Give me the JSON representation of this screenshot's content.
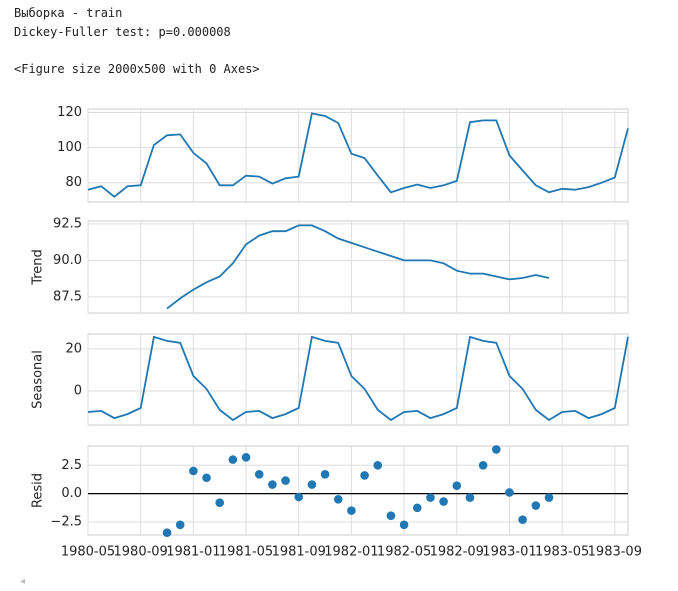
{
  "output_lines": [
    "Выборка - train",
    "Dickey-Fuller test: p=0.000008",
    "<Figure size 2000x500 with 0 Axes>"
  ],
  "chart_data": [
    {
      "type": "line",
      "color": "#1f77b4",
      "grid": true,
      "x": [
        "1980-05",
        "1980-06",
        "1980-07",
        "1980-08",
        "1980-09",
        "1980-10",
        "1980-11",
        "1980-12",
        "1981-01",
        "1981-02",
        "1981-03",
        "1981-04",
        "1981-05",
        "1981-06",
        "1981-07",
        "1981-08",
        "1981-09",
        "1981-10",
        "1981-11",
        "1981-12",
        "1982-01",
        "1982-02",
        "1982-03",
        "1982-04",
        "1982-05",
        "1982-06",
        "1982-07",
        "1982-08",
        "1982-09",
        "1982-10",
        "1982-11",
        "1982-12",
        "1983-01",
        "1983-02",
        "1983-03",
        "1983-04",
        "1983-05",
        "1983-06",
        "1983-07",
        "1983-08",
        "1983-09",
        "1983-10"
      ],
      "values": [
        76,
        78,
        72,
        78,
        78.5,
        101.5,
        107,
        107.5,
        97,
        91,
        78.5,
        78.5,
        84,
        83.5,
        79.5,
        82.5,
        83.5,
        119.5,
        118,
        114,
        96.5,
        94,
        84,
        74.5,
        77,
        79,
        77,
        78.5,
        81,
        114.5,
        115.5,
        115.5,
        95.5,
        87,
        78.5,
        74.5,
        76.5,
        76,
        77.5,
        80,
        83,
        111
      ],
      "xlim": [
        "1980-05",
        "1983-10"
      ],
      "ylim": [
        69,
        122
      ],
      "yticks": [
        80,
        100,
        120
      ]
    },
    {
      "type": "line",
      "color": "#1f77b4",
      "grid": true,
      "ylabel": "Trend",
      "x": [
        "1980-05",
        "1980-06",
        "1980-07",
        "1980-08",
        "1980-09",
        "1980-10",
        "1980-11",
        "1980-12",
        "1981-01",
        "1981-02",
        "1981-03",
        "1981-04",
        "1981-05",
        "1981-06",
        "1981-07",
        "1981-08",
        "1981-09",
        "1981-10",
        "1981-11",
        "1981-12",
        "1982-01",
        "1982-02",
        "1982-03",
        "1982-04",
        "1982-05",
        "1982-06",
        "1982-07",
        "1982-08",
        "1982-09",
        "1982-10",
        "1982-11",
        "1982-12",
        "1983-01",
        "1983-02",
        "1983-03",
        "1983-04",
        "1983-05",
        "1983-06",
        "1983-07",
        "1983-08",
        "1983-09",
        "1983-10"
      ],
      "values": [
        null,
        null,
        null,
        null,
        null,
        null,
        86.7,
        87.4,
        88.0,
        88.5,
        88.9,
        89.8,
        91.1,
        91.7,
        92.0,
        92.0,
        92.4,
        92.4,
        92.0,
        91.5,
        91.2,
        90.9,
        90.6,
        90.3,
        90.0,
        90.0,
        90.0,
        89.8,
        89.3,
        89.1,
        89.1,
        88.9,
        88.7,
        88.8,
        89.0,
        88.8,
        null,
        null,
        null,
        null,
        null,
        null
      ],
      "xlim": [
        "1980-05",
        "1983-10"
      ],
      "ylim": [
        86.4,
        92.7
      ],
      "yticks": [
        87.5,
        {
          "value": 90,
          "label": "90.0"
        },
        92.5
      ]
    },
    {
      "type": "line",
      "color": "#1f77b4",
      "grid": true,
      "ylabel": "Seasonal",
      "x": [
        "1980-05",
        "1980-06",
        "1980-07",
        "1980-08",
        "1980-09",
        "1980-10",
        "1980-11",
        "1980-12",
        "1981-01",
        "1981-02",
        "1981-03",
        "1981-04",
        "1981-05",
        "1981-06",
        "1981-07",
        "1981-08",
        "1981-09",
        "1981-10",
        "1981-11",
        "1981-12",
        "1982-01",
        "1982-02",
        "1982-03",
        "1982-04",
        "1982-05",
        "1982-06",
        "1982-07",
        "1982-08",
        "1982-09",
        "1982-10",
        "1982-11",
        "1982-12",
        "1983-01",
        "1983-02",
        "1983-03",
        "1983-04",
        "1983-05",
        "1983-06",
        "1983-07",
        "1983-08",
        "1983-09",
        "1983-10"
      ],
      "values": [
        -10,
        -9.5,
        -12.9,
        -11,
        -8.1,
        25.7,
        23.8,
        22.9,
        7.1,
        1,
        -9,
        -13.8,
        -10,
        -9.5,
        -12.9,
        -11,
        -8.1,
        25.7,
        23.8,
        22.9,
        7.1,
        1,
        -9,
        -13.8,
        -10,
        -9.5,
        -12.9,
        -11,
        -8.1,
        25.7,
        23.8,
        22.9,
        7.1,
        1,
        -9,
        -13.8,
        -10,
        -9.5,
        -12.9,
        -11,
        -8.1,
        25.7
      ],
      "xlim": [
        "1980-05",
        "1983-10"
      ],
      "ylim": [
        -16.2,
        27.1
      ],
      "yticks": [
        0,
        20
      ]
    },
    {
      "type": "scatter",
      "color": "#1f77b4",
      "grid": true,
      "ylabel": "Resid",
      "hline": 0,
      "x": [
        "1980-05",
        "1980-06",
        "1980-07",
        "1980-08",
        "1980-09",
        "1980-10",
        "1980-11",
        "1980-12",
        "1981-01",
        "1981-02",
        "1981-03",
        "1981-04",
        "1981-05",
        "1981-06",
        "1981-07",
        "1981-08",
        "1981-09",
        "1981-10",
        "1981-11",
        "1981-12",
        "1982-01",
        "1982-02",
        "1982-03",
        "1982-04",
        "1982-05",
        "1982-06",
        "1982-07",
        "1982-08",
        "1982-09",
        "1982-10",
        "1982-11",
        "1982-12",
        "1983-01",
        "1983-02",
        "1983-03",
        "1983-04",
        "1983-05",
        "1983-06",
        "1983-07",
        "1983-08",
        "1983-09",
        "1983-10"
      ],
      "values": [
        null,
        null,
        null,
        null,
        null,
        null,
        -3.45,
        -2.75,
        2.0,
        1.4,
        -0.8,
        3.0,
        3.2,
        1.7,
        0.8,
        1.15,
        -0.3,
        0.8,
        1.7,
        -0.5,
        -1.5,
        1.6,
        2.5,
        -1.95,
        -2.75,
        -1.25,
        -0.35,
        -0.7,
        0.7,
        -0.35,
        2.5,
        3.9,
        0.1,
        -2.3,
        -1.05,
        -0.35,
        null,
        null,
        null,
        null,
        null,
        null
      ],
      "xlim": [
        "1980-05",
        "1983-10"
      ],
      "ylim": [
        -3.65,
        4.2
      ],
      "yticks": [
        {
          "value": -2.5,
          "label": "−2.5"
        },
        {
          "value": 0,
          "label": "0.0"
        },
        2.5
      ],
      "xticks": [
        "1980-05",
        "1980-09",
        "1981-01",
        "1981-05",
        "1981-09",
        "1982-01",
        "1982-05",
        "1982-09",
        "1983-01",
        "1983-05",
        "1983-09"
      ]
    }
  ]
}
